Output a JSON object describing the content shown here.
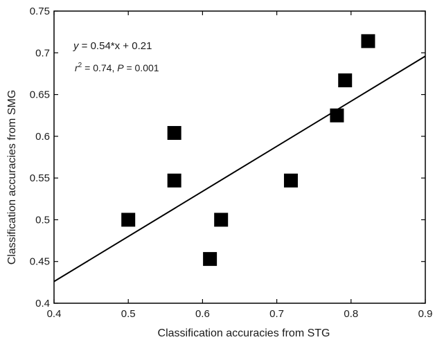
{
  "chart_data": {
    "type": "scatter",
    "title": "",
    "xlabel": "Classification accuracies from STG",
    "ylabel": "Classification accuracies from SMG",
    "xlim": [
      0.4,
      0.9
    ],
    "ylim": [
      0.4,
      0.75
    ],
    "xticks": [
      "0.4",
      "0.5",
      "0.6",
      "0.7",
      "0.8",
      "0.9"
    ],
    "yticks": [
      "0.4",
      "0.45",
      "0.5",
      "0.55",
      "0.6",
      "0.65",
      "0.7",
      "0.75"
    ],
    "grid": false,
    "legend": "none",
    "marker": "square",
    "marker_color": "#000000",
    "points": [
      {
        "x": 0.5,
        "y": 0.5
      },
      {
        "x": 0.562,
        "y": 0.604
      },
      {
        "x": 0.562,
        "y": 0.547
      },
      {
        "x": 0.61,
        "y": 0.453
      },
      {
        "x": 0.625,
        "y": 0.5
      },
      {
        "x": 0.719,
        "y": 0.547
      },
      {
        "x": 0.781,
        "y": 0.625
      },
      {
        "x": 0.792,
        "y": 0.667
      },
      {
        "x": 0.823,
        "y": 0.714
      }
    ],
    "fit_line": {
      "slope": 0.54,
      "intercept": 0.21
    },
    "annotations": {
      "equation": {
        "y": "y",
        "rest": " = 0.54*x + 0.21"
      },
      "stats": {
        "r": "r",
        "sup": "2",
        "mid": " = 0.74, ",
        "p": "P",
        "end": " = 0.001"
      }
    }
  }
}
